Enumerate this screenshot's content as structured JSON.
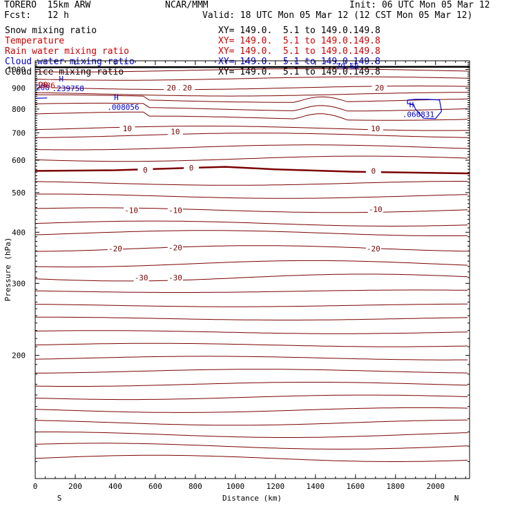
{
  "header": {
    "model": "TORERO  15km ARW",
    "center": "NCAR/MMM",
    "init": "Init: 06 UTC Mon 05 Mar 12",
    "fcst": "Fcst:   12 h",
    "valid": "Valid: 18 UTC Mon 05 Mar 12 (12 CST Mon 05 Mar 12)"
  },
  "legend": [
    {
      "label": "Snow mixing ratio",
      "xy": "XY= 149.0.  5.1 to 149.0.149.8",
      "color": "#000000"
    },
    {
      "label": "Temperature",
      "xy": "XY= 149.0.  5.1 to 149.0.149.8",
      "color": "#cc0000"
    },
    {
      "label": "Rain water mixing ratio",
      "xy": "XY= 149.0.  5.1 to 149.0.149.8",
      "color": "#cc0000"
    },
    {
      "label": "Cloud water mixing ratio",
      "xy": "XY= 149.0.  5.1 to 149.0.149.8",
      "color": "#0000cc"
    },
    {
      "label": "Cloud ice mixing ratio",
      "xy": "XY= 149.0.  5.1 to 149.0.149.8",
      "color": "#000000"
    }
  ],
  "chart_data": {
    "type": "line",
    "xlabel": "Distance (km)",
    "ylabel": "Pressure (hPa)",
    "xlim": [
      0,
      2170
    ],
    "ylim": [
      1050,
      100
    ],
    "y_scale": "log",
    "x_ticks": [
      0,
      200,
      400,
      600,
      800,
      1000,
      1200,
      1400,
      1600,
      1800,
      2000
    ],
    "y_ticks": [
      200,
      300,
      400,
      500,
      600,
      700,
      800,
      900,
      1000
    ],
    "end_labels": {
      "left": "S",
      "right": "N"
    },
    "temperature_contour_labels": [
      {
        "label": "-30",
        "x": 530,
        "p": 310
      },
      {
        "label": "-30",
        "x": 700,
        "p": 310
      },
      {
        "label": "-20",
        "x": 400,
        "p": 365
      },
      {
        "label": "-20",
        "x": 700,
        "p": 367
      },
      {
        "label": "-20",
        "x": 1690,
        "p": 365
      },
      {
        "label": "-10",
        "x": 480,
        "p": 453
      },
      {
        "label": "-10",
        "x": 700,
        "p": 453
      },
      {
        "label": "-10",
        "x": 1700,
        "p": 455
      },
      {
        "label": "0",
        "x": 550,
        "p": 568
      },
      {
        "label": "0",
        "x": 780,
        "p": 575
      },
      {
        "label": "0",
        "x": 1690,
        "p": 565
      },
      {
        "label": "10",
        "x": 460,
        "p": 718
      },
      {
        "label": "10",
        "x": 700,
        "p": 705
      },
      {
        "label": "10",
        "x": 1700,
        "p": 718
      },
      {
        "label": "20",
        "x": 680,
        "p": 902
      },
      {
        "label": "20",
        "x": 760,
        "p": 902
      },
      {
        "label": "20",
        "x": 1720,
        "p": 902
      },
      {
        "label": "20",
        "x": 40,
        "p": 918
      }
    ],
    "freezing_level": [
      {
        "x": 0,
        "p": 565
      },
      {
        "x": 400,
        "p": 567
      },
      {
        "x": 800,
        "p": 575
      },
      {
        "x": 950,
        "p": 578
      },
      {
        "x": 1200,
        "p": 570
      },
      {
        "x": 1600,
        "p": 562
      },
      {
        "x": 2170,
        "p": 557
      }
    ],
    "cloud_water_maxima": [
      {
        "label": "H",
        "value": ".008056",
        "x": 405,
        "p": 842
      },
      {
        "label": "H",
        "value": ".060831",
        "x": 1880,
        "p": 807
      },
      {
        "label": "H",
        "value": ".239758",
        "x": 130,
        "p": 935
      }
    ],
    "edge_labels": [
      {
        "text": "208",
        "x": 0,
        "p": 890,
        "color": "#0000cc"
      },
      {
        "text": "1986",
        "x": 5,
        "p": 900,
        "color": "#cc0000"
      }
    ],
    "overlap_label": "79.6k"
  }
}
